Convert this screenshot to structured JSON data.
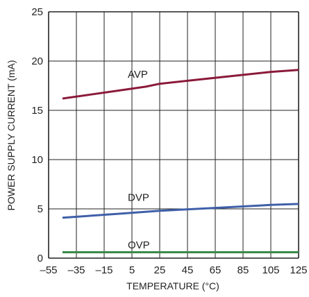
{
  "chart_data": {
    "type": "line",
    "xlabel": "TEMPERATURE (°C)",
    "ylabel": "POWER SUPPLY CURRENT (mA)",
    "xlim": [
      -55,
      125
    ],
    "ylim": [
      0,
      25
    ],
    "xticks": [
      "–55",
      "–35",
      "–15",
      "5",
      "25",
      "45",
      "65",
      "85",
      "105",
      "125"
    ],
    "yticks": [
      "0",
      "5",
      "10",
      "15",
      "20",
      "25"
    ],
    "grid": true,
    "series": [
      {
        "name": "AVP",
        "color": "#8b1a3a",
        "x": [
          -45,
          -25,
          -5,
          15,
          25,
          45,
          65,
          85,
          105,
          125
        ],
        "y": [
          16.2,
          16.6,
          17.0,
          17.4,
          17.7,
          18.0,
          18.3,
          18.6,
          18.9,
          19.1
        ]
      },
      {
        "name": "DVP",
        "color": "#3f5fa8",
        "x": [
          -45,
          -5,
          25,
          65,
          105,
          125
        ],
        "y": [
          4.1,
          4.5,
          4.8,
          5.1,
          5.4,
          5.5
        ]
      },
      {
        "name": "OVP",
        "color": "#3a8a4a",
        "x": [
          -45,
          125
        ],
        "y": [
          0.6,
          0.6
        ]
      }
    ],
    "labels": [
      {
        "text": "AVP",
        "x": 3,
        "y": 18.3
      },
      {
        "text": "DVP",
        "x": 3,
        "y": 5.8
      },
      {
        "text": "OVP",
        "x": 3,
        "y": 1.0
      }
    ]
  }
}
